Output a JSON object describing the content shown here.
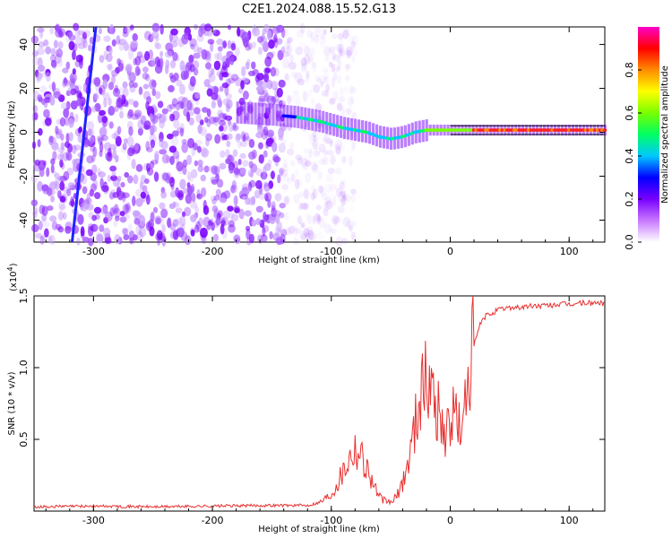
{
  "title": "C2E1.2024.088.15.52.G13",
  "chart_data": [
    {
      "type": "heatmap",
      "xlabel": "Height of straight line (km)",
      "ylabel": "Frequency (Hz)",
      "xlim": [
        -350,
        130
      ],
      "ylim": [
        -50,
        48
      ],
      "x_ticks": [
        -300,
        -200,
        -100,
        0,
        100
      ],
      "y_ticks": [
        -40,
        -20,
        0,
        20,
        40
      ],
      "colorbar": {
        "label": "Normalized spectral amplitude",
        "range": [
          0.0,
          1.0
        ],
        "ticks": [
          "0.0",
          "0.2",
          "0.4",
          "0.6",
          "0.8"
        ],
        "colors": [
          "#ffffff",
          "#c878ff",
          "#7800ff",
          "#0000ff",
          "#00c8ff",
          "#00ff64",
          "#78ff00",
          "#ffff00",
          "#ff8c00",
          "#ff0000",
          "#ff00c8"
        ]
      },
      "signal_track": {
        "description_free": true,
        "x": [
          -180,
          -150,
          -130,
          -110,
          -90,
          -70,
          -60,
          -50,
          -40,
          -30,
          -20,
          -10,
          0,
          20,
          50,
          80,
          100,
          130
        ],
        "freq": [
          9,
          8,
          7,
          5,
          2,
          0,
          -2,
          -3,
          -2,
          0,
          1,
          1,
          1,
          1,
          1,
          1,
          1,
          1
        ]
      },
      "noise_extent_x": [
        -350,
        -140
      ],
      "streak": {
        "x": [
          -318,
          -298
        ],
        "freq": [
          -50,
          48
        ]
      }
    },
    {
      "type": "line",
      "xlabel": "Height of straight line (km)",
      "ylabel": "SNR (10 * v/v)",
      "y_multiplier": "(x10",
      "y_multiplier_exp": "4",
      "y_multiplier_close": ")",
      "xlim": [
        -350,
        130
      ],
      "ylim": [
        0,
        1.5
      ],
      "x_ticks": [
        -300,
        -200,
        -100,
        0,
        100
      ],
      "y_ticks": [
        "0.5",
        "1.0",
        "1.5"
      ],
      "y_tick_values": [
        0.5,
        1.0,
        1.5
      ],
      "color": "#e83030",
      "series": [
        {
          "x": [
            -350,
            -300,
            -250,
            -200,
            -150,
            -120,
            -110,
            -100,
            -95,
            -90,
            -85,
            -80,
            -75,
            -70,
            -65,
            -60,
            -55,
            -50,
            -45,
            -40,
            -35,
            -30,
            -25,
            -20,
            -15,
            -10,
            -5,
            0,
            5,
            10,
            15,
            20,
            25,
            30,
            40,
            50,
            60,
            70,
            80,
            90,
            100,
            110,
            120,
            130
          ],
          "y": [
            0.03,
            0.035,
            0.03,
            0.035,
            0.04,
            0.04,
            0.06,
            0.12,
            0.2,
            0.28,
            0.38,
            0.45,
            0.4,
            0.3,
            0.2,
            0.1,
            0.07,
            0.06,
            0.1,
            0.2,
            0.35,
            0.6,
            0.85,
            0.9,
            0.85,
            0.7,
            0.55,
            0.6,
            0.7,
            0.5,
            0.95,
            1.15,
            1.3,
            1.36,
            1.4,
            1.42,
            1.42,
            1.43,
            1.43,
            1.44,
            1.44,
            1.45,
            1.45,
            1.45
          ]
        }
      ]
    }
  ]
}
